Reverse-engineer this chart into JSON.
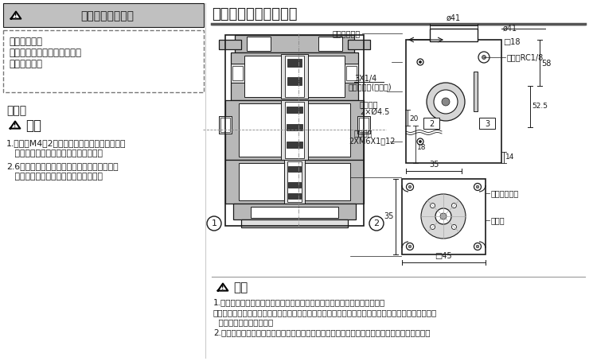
{
  "bg_color": "#ffffff",
  "header_left_bg": "#c0c0c0",
  "header_left_text": "产品个别注意事项",
  "header_right_text": "构造简图／外形尺寸图",
  "warning_box_text": [
    "使用前必读。",
    "安全上的注意、共通注意事项",
    "由前附确认。"
  ],
  "assembly_title": "集装式",
  "caution_title": "注意",
  "caution_item1_a": "1.各阀用M4的2只安装螺钉固定在集装板上，再",
  "caution_item1_b": "   安装时，安装螺钉按规定的力矩紧固。",
  "caution_item2_a": "2.6位以上的场合从通口两侧加压。另外，共通",
  "caution_item2_b": "   排气形式的场合，也从通口两侧排气。",
  "bottom_caution_title": "注意",
  "bci0": "1.阀的底面上有主阀芯的呼吸孔，呼吸孔一旦阻塞便动作不良，故不要堵塞。",
  "bci1": "（通常，被安装在金属面上的场合，从呼吸孔通过呼吸沟呼吸。特别是安装面是橡胶面的场合，由于橡",
  "bci2": "  胶变形，有可能堵塞。）",
  "bci3": "2.要防止灰尘，异物等从不使用的排气口等进入。另外，还要防止水，异物从膜片的呼吸孔进入。",
  "lbl_membrane": "膜片的呼吸孔",
  "lbl_phi41": "ø41",
  "lbl_sq18": "□18",
  "lbl_pilot": "先导口RC1/8",
  "lbl_3x14": "3X1/4",
  "lbl_main_port": "配管连接口(主要口)",
  "lbl_upper": "上方安装",
  "lbl_upper2": "2×Ø4.5",
  "lbl_lower": "下方安装",
  "lbl_lower2": "2XM6X1深12",
  "lbl_35": "35",
  "lbl_20": "20",
  "lbl_18": "18",
  "lbl_58": "58",
  "lbl_52": "52.5",
  "lbl_14": "14",
  "lbl_2": "2",
  "lbl_3": "3",
  "lbl_main_spool": "主阀芯呼吸孔",
  "lbl_breath": "呼吸沟",
  "lbl_dim45": "□45",
  "lbl_35b": "35",
  "lbl_c1": "1",
  "lbl_c2": "2",
  "text_color": "#1a1a1a",
  "line_color": "#1a1a1a",
  "gray_fill": "#b8b8b8",
  "dark_fill": "#3a3a3a",
  "light_fill": "#e0e0e0",
  "white": "#ffffff"
}
